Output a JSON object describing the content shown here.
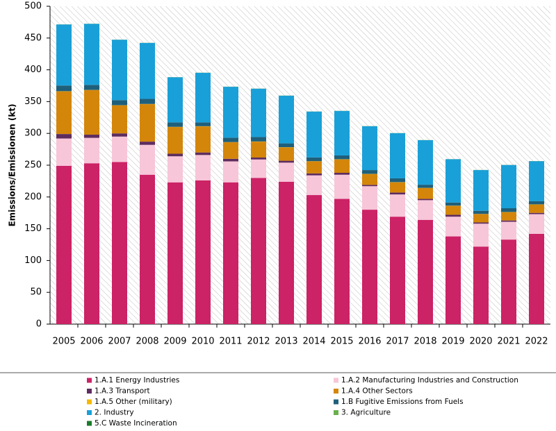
{
  "chart_data": {
    "type": "stacked-bar",
    "y_label": "Emissions/Emissionen (kt)",
    "categories": [
      "2005",
      "2006",
      "2007",
      "2008",
      "2009",
      "2010",
      "2011",
      "2012",
      "2013",
      "2014",
      "2015",
      "2016",
      "2017",
      "2018",
      "2019",
      "2020",
      "2021",
      "2022"
    ],
    "series": [
      {
        "name": "1.A.1 Energy Industries",
        "color": "#cc2266",
        "values": [
          249,
          253,
          255,
          235,
          223,
          226,
          223,
          230,
          224,
          203,
          197,
          180,
          169,
          164,
          138,
          122,
          133,
          142
        ]
      },
      {
        "name": "1.A.2 Manufacturing Industries and Construction",
        "color": "#f7c6d8",
        "values": [
          43,
          40,
          40,
          47,
          41,
          40,
          33,
          29,
          30,
          31,
          38,
          37,
          35,
          31,
          31,
          36,
          28,
          31
        ]
      },
      {
        "name": "1.A.3 Transport",
        "color": "#5e2d5e",
        "values": [
          7,
          5,
          5,
          5,
          4,
          4,
          4,
          3,
          3,
          3,
          3,
          2,
          3,
          2,
          3,
          2,
          2,
          2
        ]
      },
      {
        "name": "1.A.4 Other Sectors",
        "color": "#d4860b",
        "values": [
          67,
          70,
          44,
          59,
          42,
          41,
          26,
          25,
          21,
          19,
          21,
          17,
          16,
          17,
          14,
          13,
          13,
          13
        ]
      },
      {
        "name": "1.A.5 Other (military)",
        "color": "#f5b800",
        "values": [
          0.3,
          0.3,
          0.3,
          0.3,
          0.3,
          0.3,
          0.3,
          0.3,
          0.3,
          0.3,
          0.3,
          0.3,
          0.3,
          0.3,
          0.3,
          0.3,
          0.3,
          0.3
        ]
      },
      {
        "name": "1.B Fugitive Emissions from Fuels",
        "color": "#1f5f7a",
        "values": [
          9,
          8,
          8,
          8,
          7,
          6,
          7,
          7,
          6,
          6,
          6,
          6,
          6,
          5,
          5,
          5,
          6,
          5
        ]
      },
      {
        "name": "2. Industry",
        "color": "#1aa0d8",
        "values": [
          96,
          96,
          95,
          88,
          71,
          78,
          80,
          76,
          75,
          72,
          70,
          69,
          71,
          70,
          68,
          64,
          68,
          63
        ]
      },
      {
        "name": "3. Agriculture",
        "color": "#6ab04c",
        "values": [
          0.1,
          0.1,
          0.1,
          0.1,
          0.1,
          0.1,
          0.1,
          0.1,
          0.1,
          0.1,
          0.1,
          0.1,
          0.1,
          0.1,
          0.1,
          0.1,
          0.1,
          0.1
        ]
      },
      {
        "name": "5.C Waste Incineration",
        "color": "#1a7a2a",
        "values": [
          0.1,
          0.1,
          0.1,
          0.1,
          0.1,
          0.1,
          0.1,
          0.1,
          0.1,
          0.1,
          0.1,
          0.1,
          0.1,
          0.1,
          0.1,
          0.1,
          0.1,
          0.1
        ]
      }
    ],
    "ylim": [
      0,
      500
    ],
    "yticks": [
      0,
      50,
      100,
      150,
      200,
      250,
      300,
      350,
      400,
      450,
      500
    ],
    "grid": false
  }
}
